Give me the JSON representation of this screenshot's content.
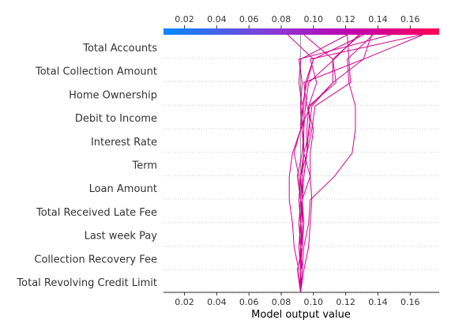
{
  "chart_data": {
    "type": "line",
    "subtype": "decision-plot",
    "xlabel": "Model output value",
    "xlim": [
      0.007,
      0.178
    ],
    "xticks": [
      0.02,
      0.04,
      0.06,
      0.08,
      0.1,
      0.12,
      0.14,
      0.16
    ],
    "tick_labels": [
      "0.02",
      "0.04",
      "0.06",
      "0.08",
      "0.10",
      "0.12",
      "0.14",
      "0.16"
    ],
    "base_value": 0.092,
    "features": [
      "Total Accounts",
      "Total Collection Amount",
      "Home Ownership",
      "Debit to Income",
      "Interest Rate",
      "Term",
      "Loan Amount",
      "Total Received Late Fee",
      "Last week Pay",
      "Collection Recovery Fee",
      "Total Revolving Credit Limit"
    ],
    "colormap": [
      "#008bfb",
      "#8a39d6",
      "#c000b0",
      "#ff0052"
    ],
    "line_color": "#d4008f",
    "grid": "dotted-horizontal",
    "series": [
      {
        "values": [
          0.092,
          0.092,
          0.092,
          0.091,
          0.092,
          0.091,
          0.088,
          0.092,
          0.093,
          0.091,
          0.092,
          0.121
        ]
      },
      {
        "values": [
          0.092,
          0.093,
          0.091,
          0.092,
          0.093,
          0.094,
          0.096,
          0.097,
          0.099,
          0.112,
          0.112,
          0.129
        ]
      },
      {
        "values": [
          0.092,
          0.093,
          0.094,
          0.097,
          0.098,
          0.113,
          0.124,
          0.126,
          0.126,
          0.122,
          0.121,
          0.137
        ]
      },
      {
        "values": [
          0.092,
          0.092,
          0.093,
          0.092,
          0.091,
          0.092,
          0.094,
          0.098,
          0.097,
          0.102,
          0.098,
          0.167
        ]
      },
      {
        "values": [
          0.092,
          0.09,
          0.093,
          0.092,
          0.093,
          0.093,
          0.094,
          0.094,
          0.093,
          0.096,
          0.1,
          0.131
        ]
      },
      {
        "values": [
          0.092,
          0.092,
          0.093,
          0.094,
          0.093,
          0.094,
          0.096,
          0.099,
          0.101,
          0.123,
          0.122,
          0.121
        ]
      },
      {
        "values": [
          0.092,
          0.093,
          0.092,
          0.094,
          0.093,
          0.092,
          0.096,
          0.096,
          0.097,
          0.114,
          0.112,
          0.094
        ]
      },
      {
        "values": [
          0.092,
          0.091,
          0.088,
          0.087,
          0.085,
          0.085,
          0.087,
          0.092,
          0.098,
          0.112,
          0.131,
          0.168
        ]
      },
      {
        "values": [
          0.092,
          0.092,
          0.091,
          0.092,
          0.093,
          0.098,
          0.098,
          0.1,
          0.096,
          0.094,
          0.131,
          0.136
        ]
      },
      {
        "values": [
          0.092,
          0.092,
          0.093,
          0.094,
          0.092,
          0.09,
          0.093,
          0.094,
          0.095,
          0.097,
          0.113,
          0.128
        ]
      },
      {
        "values": [
          0.092,
          0.093,
          0.092,
          0.093,
          0.093,
          0.092,
          0.094,
          0.093,
          0.094,
          0.095,
          0.1,
          0.084
        ]
      },
      {
        "values": [
          0.092,
          0.094,
          0.097,
          0.098,
          0.099,
          0.098,
          0.094,
          0.093,
          0.092,
          0.093,
          0.091,
          0.148
        ]
      }
    ]
  }
}
